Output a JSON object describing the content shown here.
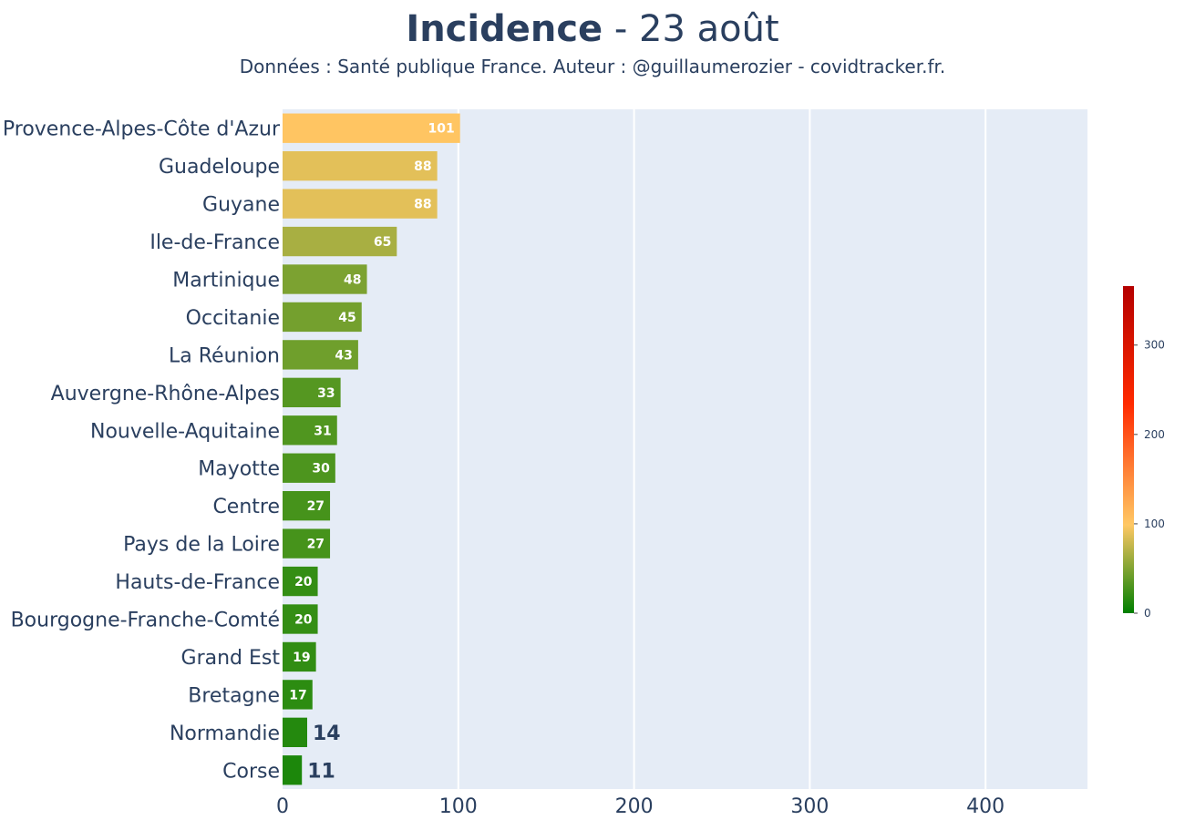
{
  "header": {
    "title_main": "Incidence",
    "title_rest": " - 23 août",
    "subtitle": "Données : Santé publique France. Auteur : @guillaumerozier - covidtracker.fr."
  },
  "chart_data": {
    "type": "bar",
    "orientation": "horizontal",
    "categories": [
      "Provence-Alpes-Côte d'Azur",
      "Guadeloupe",
      "Guyane",
      "Ile-de-France",
      "Martinique",
      "Occitanie",
      "La Réunion",
      "Auvergne-Rhône-Alpes",
      "Nouvelle-Aquitaine",
      "Mayotte",
      "Centre",
      "Pays de la Loire",
      "Hauts-de-France",
      "Bourgogne-Franche-Comté",
      "Grand Est",
      "Bretagne",
      "Normandie",
      "Corse"
    ],
    "values": [
      101,
      88,
      88,
      65,
      48,
      45,
      43,
      33,
      31,
      30,
      27,
      27,
      20,
      20,
      19,
      17,
      14,
      11
    ],
    "xlim": [
      0,
      458
    ],
    "xticks": [
      0,
      100,
      200,
      300,
      400
    ],
    "grid": true,
    "plot_background": "#e5ecf6",
    "colorbar": {
      "range": [
        0,
        366
      ],
      "ticks": [
        0,
        100,
        200,
        300
      ],
      "colorscale": [
        "#007f00",
        "#ffc864",
        "#ff2a00",
        "#b40000"
      ]
    }
  }
}
